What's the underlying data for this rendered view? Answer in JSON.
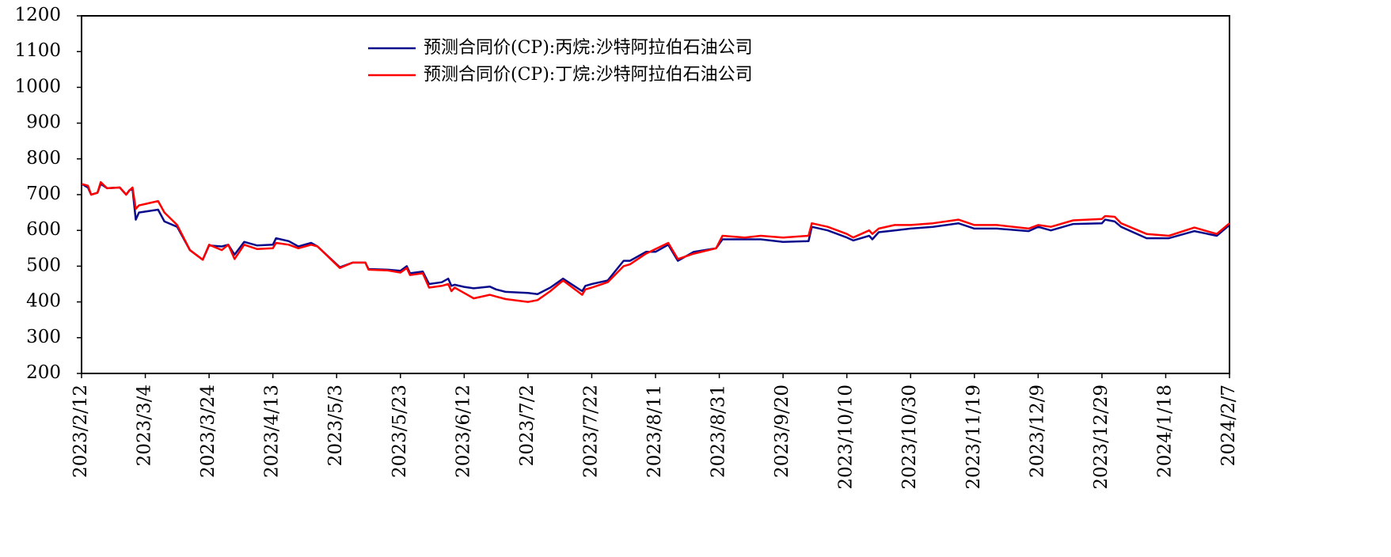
{
  "chart_data": {
    "type": "line",
    "x": [
      "2023/2/12",
      "2023/2/14",
      "2023/2/15",
      "2023/2/17",
      "2023/2/18",
      "2023/2/20",
      "2023/2/24",
      "2023/2/26",
      "2023/2/27",
      "2023/2/28",
      "2023/3/1",
      "2023/3/2",
      "2023/3/8",
      "2023/3/10",
      "2023/3/14",
      "2023/3/18",
      "2023/3/22",
      "2023/3/24",
      "2023/3/28",
      "2023/3/30",
      "2023/4/1",
      "2023/4/4",
      "2023/4/8",
      "2023/4/13",
      "2023/4/14",
      "2023/4/18",
      "2023/4/21",
      "2023/4/25",
      "2023/4/27",
      "2023/5/4",
      "2023/5/8",
      "2023/5/12",
      "2023/5/13",
      "2023/5/19",
      "2023/5/23",
      "2023/5/25",
      "2023/5/26",
      "2023/5/30",
      "2023/6/1",
      "2023/6/5",
      "2023/6/7",
      "2023/6/8",
      "2023/6/9",
      "2023/6/12",
      "2023/6/15",
      "2023/6/20",
      "2023/6/22",
      "2023/6/25",
      "2023/7/2",
      "2023/7/5",
      "2023/7/9",
      "2023/7/13",
      "2023/7/19",
      "2023/7/20",
      "2023/7/22",
      "2023/7/27",
      "2023/8/1",
      "2023/8/3",
      "2023/8/8",
      "2023/8/11",
      "2023/8/15",
      "2023/8/18",
      "2023/8/23",
      "2023/8/30",
      "2023/9/1",
      "2023/9/8",
      "2023/9/13",
      "2023/9/20",
      "2023/9/28",
      "2023/9/29",
      "2023/10/4",
      "2023/10/10",
      "2023/10/12",
      "2023/10/17",
      "2023/10/18",
      "2023/10/20",
      "2023/10/25",
      "2023/10/30",
      "2023/11/6",
      "2023/11/14",
      "2023/11/19",
      "2023/11/26",
      "2023/12/6",
      "2023/12/9",
      "2023/12/13",
      "2023/12/20",
      "2023/12/29",
      "2023/12/30",
      "2024/1/2",
      "2024/1/4",
      "2024/1/12",
      "2024/1/19",
      "2024/1/27",
      "2024/2/3",
      "2024/2/7"
    ],
    "series": [
      {
        "name": "预测合同价(CP):丙烷:沙特阿拉伯石油公司",
        "color": "#0a0a8c",
        "values": [
          730,
          720,
          700,
          705,
          730,
          718,
          720,
          700,
          712,
          715,
          630,
          650,
          658,
          625,
          610,
          545,
          518,
          558,
          555,
          560,
          532,
          568,
          558,
          560,
          578,
          570,
          555,
          565,
          555,
          497,
          510,
          510,
          492,
          490,
          487,
          500,
          480,
          485,
          450,
          455,
          465,
          445,
          448,
          442,
          438,
          443,
          435,
          428,
          425,
          422,
          440,
          465,
          430,
          445,
          450,
          460,
          515,
          515,
          540,
          540,
          560,
          515,
          540,
          550,
          575,
          575,
          575,
          568,
          570,
          610,
          600,
          580,
          572,
          585,
          575,
          595,
          600,
          605,
          610,
          620,
          605,
          605,
          598,
          610,
          600,
          618,
          620,
          630,
          625,
          610,
          578,
          578,
          598,
          585,
          615
        ]
      },
      {
        "name": "预测合同价(CP):丁烷:沙特阿拉伯石油公司",
        "color": "#ff0000",
        "values": [
          730,
          725,
          700,
          705,
          735,
          718,
          720,
          700,
          712,
          720,
          660,
          670,
          682,
          650,
          615,
          545,
          518,
          560,
          545,
          560,
          520,
          560,
          548,
          550,
          565,
          560,
          550,
          560,
          555,
          495,
          510,
          510,
          490,
          488,
          482,
          495,
          475,
          480,
          440,
          445,
          450,
          430,
          440,
          425,
          410,
          420,
          415,
          408,
          400,
          405,
          430,
          460,
          420,
          435,
          440,
          455,
          500,
          505,
          535,
          548,
          565,
          520,
          535,
          550,
          585,
          580,
          585,
          580,
          585,
          620,
          610,
          590,
          580,
          600,
          590,
          605,
          615,
          615,
          620,
          630,
          615,
          615,
          605,
          615,
          610,
          628,
          632,
          640,
          638,
          620,
          590,
          585,
          608,
          590,
          620
        ]
      }
    ],
    "xlim": [
      "2023/2/12",
      "2024/2/7"
    ],
    "xticks": [
      "2023/2/12",
      "2023/3/4",
      "2023/3/24",
      "2023/4/13",
      "2023/5/3",
      "2023/5/23",
      "2023/6/12",
      "2023/7/2",
      "2023/7/22",
      "2023/8/11",
      "2023/8/31",
      "2023/9/20",
      "2023/10/10",
      "2023/10/30",
      "2023/11/19",
      "2023/12/9",
      "2023/12/29",
      "2024/1/18",
      "2024/2/7"
    ],
    "ylim": [
      200,
      1200
    ],
    "yticks": [
      200,
      300,
      400,
      500,
      600,
      700,
      800,
      900,
      1000,
      1100,
      1200
    ],
    "grid": false
  }
}
